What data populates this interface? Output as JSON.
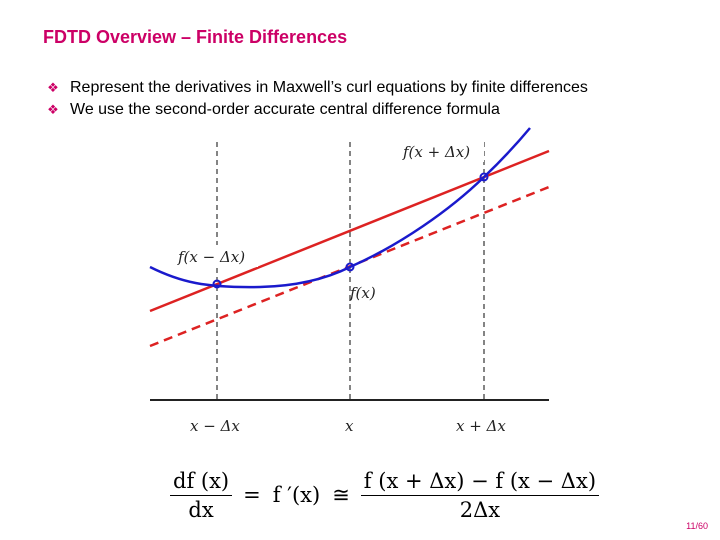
{
  "slide": {
    "title": "FDTD Overview – Finite Differences",
    "bullets": [
      "Represent the derivatives in Maxwell’s curl equations by finite differences",
      "We use the second-order accurate central difference formula"
    ],
    "bullet_icon": "diamond-cluster-icon",
    "page_number": "11/60"
  },
  "figure": {
    "x_tick_labels": [
      "x − Δx",
      "x",
      "x + Δx"
    ],
    "point_labels": [
      "f(x − Δx)",
      "f(x)",
      "f(x + Δx)"
    ],
    "colors": {
      "curve": "#1a1acc",
      "secant": "#dd2222",
      "tangent": "#dd2222",
      "accent": "#cc0066"
    }
  },
  "formula": {
    "lhs_num": "df (x)",
    "lhs_den": "dx",
    "eq": "=",
    "middle": "f ′(x)",
    "approx": "≅",
    "rhs_num": "f (x + Δx) − f (x − Δx)",
    "rhs_den": "2Δx"
  }
}
